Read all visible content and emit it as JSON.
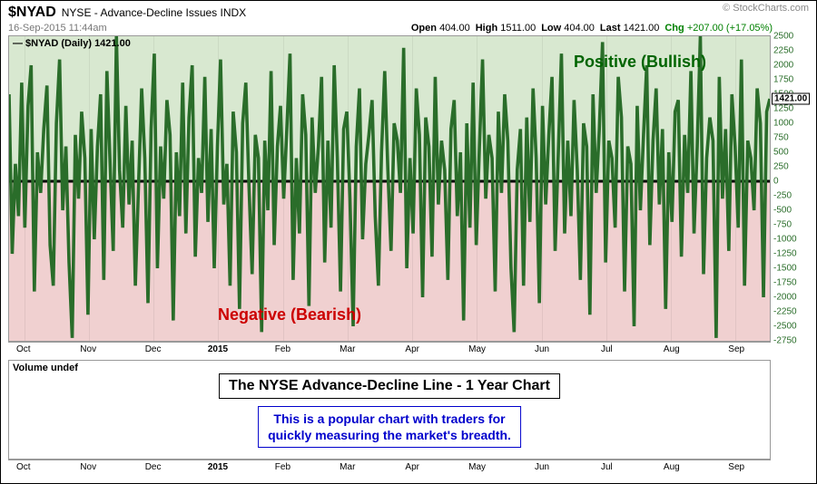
{
  "header": {
    "symbol": "$NYAD",
    "description": "NYSE - Advance-Decline Issues INDX",
    "source": "© StockCharts.com",
    "date": "16-Sep-2015 11:44am",
    "open_label": "Open",
    "open": "404.00",
    "high_label": "High",
    "high": "1511.00",
    "low_label": "Low",
    "low": "404.00",
    "last_label": "Last",
    "last": "1421.00",
    "chg_label": "Chg",
    "chg": "+207.00 (+17.05%)",
    "chg_color": "#008000"
  },
  "plot": {
    "type": "line",
    "series_label": "— $NYAD (Daily) 1421.00",
    "line_color": "#2a6d2a",
    "line_width": 1.2,
    "background_positive": "#d8e8d0",
    "background_negative": "#f0d0d0",
    "zero_line_color": "#000000",
    "zero_line_width": 3,
    "bullish_text": "Positive (Bullish)",
    "bullish_color": "#006400",
    "bearish_text": "Negative (Bearish)",
    "bearish_color": "#cc0000",
    "ylim": [
      -2750,
      2500
    ],
    "yticks": [
      2500,
      2250,
      2000,
      1750,
      1500,
      1250,
      1000,
      750,
      500,
      250,
      0,
      -250,
      -500,
      -750,
      -1000,
      -1250,
      -1500,
      -1750,
      -2000,
      -2250,
      -2500,
      -2750
    ],
    "last_value": 1421.0,
    "xticks": [
      "Oct",
      "Nov",
      "Dec",
      "2015",
      "Feb",
      "Mar",
      "Apr",
      "May",
      "Jun",
      "Jul",
      "Aug",
      "Sep"
    ],
    "xtick_positions_pct": [
      2,
      10.5,
      19,
      27.5,
      36,
      44.5,
      53,
      61.5,
      70,
      78.5,
      87,
      95.5
    ],
    "data": [
      1500,
      -1250,
      300,
      -600,
      1700,
      -800,
      1300,
      2000,
      -1900,
      500,
      -200,
      900,
      1650,
      -1100,
      -1800,
      1000,
      2100,
      -500,
      600,
      -1400,
      -2700,
      800,
      -300,
      1200,
      400,
      -2300,
      900,
      -1000,
      600,
      1500,
      -1700,
      1900,
      300,
      -1200,
      2500,
      200,
      -800,
      1300,
      -400,
      700,
      -1800,
      -100,
      1600,
      400,
      -2100,
      900,
      2200,
      -1500,
      600,
      -300,
      1400,
      800,
      -2400,
      500,
      -600,
      1700,
      -900,
      1100,
      2000,
      -1300,
      400,
      -200,
      1800,
      -700,
      900,
      -1500,
      600,
      2100,
      -400,
      300,
      -1800,
      1200,
      500,
      -2200,
      1000,
      1700,
      -100,
      -1600,
      800,
      400,
      -2600,
      700,
      -500,
      1900,
      -1100,
      600,
      1300,
      -300,
      900,
      2200,
      -1700,
      400,
      -900,
      1500,
      800,
      -2150,
      1100,
      -200,
      600,
      1800,
      -1400,
      700,
      -800,
      2000,
      400,
      -1900,
      900,
      1200,
      -300,
      -2500,
      600,
      1600,
      -1000,
      300,
      800,
      1400,
      -600,
      -1800,
      500,
      1900,
      200,
      -1200,
      1000,
      700,
      -200,
      2300,
      -1500,
      400,
      -900,
      1600,
      800,
      -2000,
      1100,
      600,
      -1300,
      1800,
      -400,
      700,
      200,
      -1700,
      900,
      1400,
      -600,
      500,
      -2400,
      1000,
      -800,
      1700,
      -1100,
      600,
      2100,
      -300,
      800,
      400,
      -1900,
      1200,
      -200,
      1500,
      700,
      -1500,
      -2600,
      200,
      900,
      -1800,
      1100,
      -700,
      1600,
      400,
      -2100,
      1300,
      -400,
      800,
      1800,
      -1200,
      500,
      2200,
      -900,
      700,
      -600,
      1400,
      200,
      -1700,
      1000,
      600,
      -2300,
      1500,
      -200,
      900,
      2400,
      -1400,
      700,
      400,
      -800,
      1800,
      1100,
      -1900,
      600,
      300,
      -2500,
      1300,
      -500,
      800,
      2000,
      -1100,
      700,
      1600,
      -400,
      900,
      -2200,
      500,
      -700,
      1200,
      1400,
      -1300,
      800,
      -200,
      1900,
      -900,
      600,
      2500,
      -1600,
      400,
      1100,
      700,
      -2700,
      1800,
      -300,
      900,
      -1200,
      1500,
      600,
      -800,
      2100,
      -1800,
      700,
      400,
      -500,
      1600,
      1000,
      -2000,
      1200,
      1421
    ]
  },
  "volume_panel": {
    "label": "Volume undef",
    "title_box": "The NYSE Advance-Decline Line - 1 Year Chart",
    "subtitle_box": "This is a popular chart with traders for\nquickly measuring the market's breadth.",
    "subtitle_color": "#0000cc"
  }
}
